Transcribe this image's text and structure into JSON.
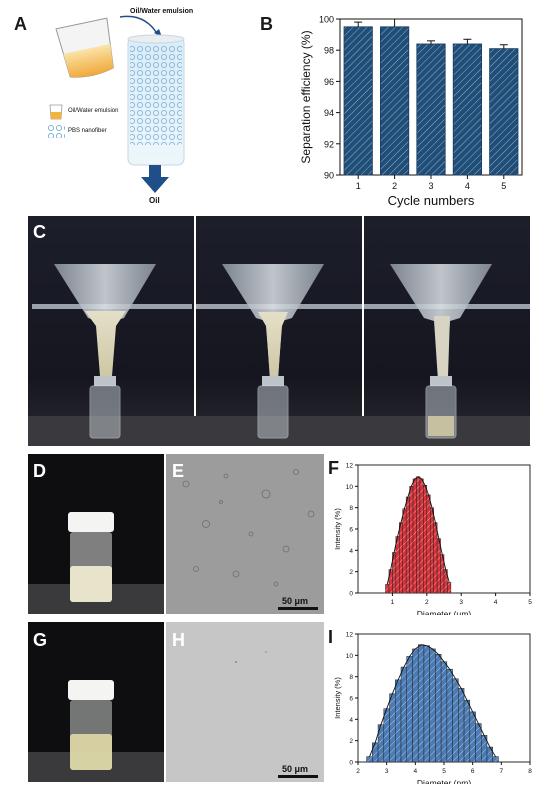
{
  "panels": {
    "A": {
      "letter": "A",
      "beaker_label": "Oil/Water emulsion",
      "legend": [
        {
          "icon": "beaker-icon",
          "label": "Oil/Water emulsion"
        },
        {
          "icon": "nanofiber-icon",
          "label": "PBS nanofiber"
        }
      ],
      "output_label": "Oil",
      "colors": {
        "emulsion": "#f2b43c",
        "fiber": "#7fb8dc",
        "arrow": "#1f4e89"
      }
    },
    "B": {
      "letter": "B"
    },
    "C": {
      "letter": "C"
    },
    "D": {
      "letter": "D"
    },
    "E": {
      "letter": "E",
      "scalebar_label": "50 μm"
    },
    "F": {
      "letter": "F"
    },
    "G": {
      "letter": "G"
    },
    "H": {
      "letter": "H",
      "scalebar_label": "50 μm"
    },
    "I": {
      "letter": "I"
    }
  },
  "chart_data": [
    {
      "id": "B",
      "type": "bar",
      "categories": [
        "1",
        "2",
        "3",
        "4",
        "5"
      ],
      "values": [
        99.5,
        99.5,
        98.4,
        98.4,
        98.1
      ],
      "errors": [
        0.3,
        0.5,
        0.2,
        0.3,
        0.25
      ],
      "xlabel": "Cycle numbers",
      "ylabel": "Separation efficiency (%)",
      "ylim": [
        90,
        100
      ],
      "yticks": [
        "90",
        "92",
        "94",
        "96",
        "98",
        "100"
      ],
      "bar_color": "#1f4e79",
      "hatch": true
    },
    {
      "id": "F",
      "type": "bar",
      "x": [
        0.85,
        0.95,
        1.05,
        1.15,
        1.25,
        1.35,
        1.45,
        1.55,
        1.65,
        1.75,
        1.85,
        1.95,
        2.05,
        2.15,
        2.25,
        2.35,
        2.45,
        2.55,
        2.65
      ],
      "values": [
        0.8,
        2.2,
        3.8,
        5.3,
        6.6,
        7.9,
        9.0,
        10.0,
        10.7,
        10.9,
        10.7,
        10.1,
        9.2,
        8.0,
        6.6,
        5.1,
        3.6,
        2.2,
        1.0
      ],
      "fit": true,
      "xlabel": "Diameter (μm)",
      "ylabel": "Intensity (%)",
      "xlim": [
        0,
        5
      ],
      "ylim": [
        0,
        12
      ],
      "xticks": [
        "1",
        "2",
        "3",
        "4",
        "5"
      ],
      "yticks": [
        "0",
        "2",
        "4",
        "6",
        "8",
        "10",
        "12"
      ],
      "bar_color": "#d8323a",
      "hatch": true
    },
    {
      "id": "I",
      "type": "bar",
      "x": [
        2.4,
        2.6,
        2.8,
        3.0,
        3.2,
        3.4,
        3.6,
        3.8,
        4.0,
        4.2,
        4.4,
        4.6,
        4.8,
        5.0,
        5.2,
        5.4,
        5.6,
        5.8,
        6.0,
        6.2,
        6.4,
        6.6,
        6.8
      ],
      "values": [
        0.5,
        1.8,
        3.5,
        5.0,
        6.4,
        7.7,
        8.9,
        9.9,
        10.6,
        11.0,
        10.9,
        10.6,
        10.1,
        9.4,
        8.7,
        7.8,
        6.9,
        5.8,
        4.7,
        3.6,
        2.5,
        1.4,
        0.5
      ],
      "fit": true,
      "xlabel": "Diameter (nm)",
      "ylabel": "Intensity (%)",
      "xlim": [
        2,
        8
      ],
      "ylim": [
        0,
        12
      ],
      "xticks": [
        "2",
        "3",
        "4",
        "5",
        "6",
        "7",
        "8"
      ],
      "yticks": [
        "0",
        "2",
        "4",
        "6",
        "8",
        "10",
        "12"
      ],
      "bar_color": "#4b7bb5",
      "hatch": true
    }
  ]
}
